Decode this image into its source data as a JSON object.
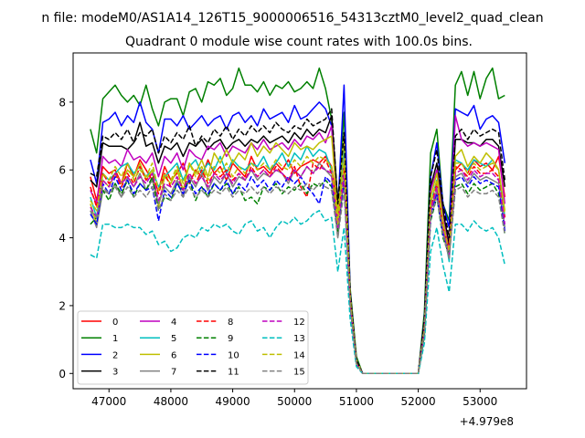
{
  "figure": {
    "suptitle": "n file: modeM0/AS1A14_126T15_9000006516_54313cztM0_level2_quad_clean"
  },
  "chart_data": {
    "type": "line",
    "title": "Quadrant 0 module wise count rates with 100.0s bins.",
    "xlabel": "",
    "ylabel": "",
    "x_offset_label": "+4.979e8",
    "x_offset": 497900000,
    "xlim": [
      46420,
      53750
    ],
    "ylim": [
      -0.45,
      9.45
    ],
    "xticks": [
      47000,
      48000,
      49000,
      50000,
      51000,
      52000,
      53000
    ],
    "xtick_labels": [
      "47000",
      "48000",
      "49000",
      "50000",
      "51000",
      "52000",
      "53000"
    ],
    "yticks": [
      0,
      2,
      4,
      6,
      8
    ],
    "ytick_labels": [
      "0",
      "2",
      "4",
      "6",
      "8"
    ],
    "grid": false,
    "legend": {
      "placement": "lower-left",
      "columns": 4
    },
    "x": [
      46700,
      46800,
      46900,
      47000,
      47100,
      47200,
      47300,
      47400,
      47500,
      47600,
      47700,
      47800,
      47900,
      48000,
      48100,
      48200,
      48300,
      48400,
      48500,
      48600,
      48700,
      48800,
      48900,
      49000,
      49100,
      49200,
      49300,
      49400,
      49500,
      49600,
      49700,
      49800,
      49900,
      50000,
      50100,
      50200,
      50300,
      50400,
      50500,
      50600,
      50700,
      50800,
      50900,
      51000,
      51100,
      51200,
      51300,
      51400,
      51500,
      51600,
      51700,
      51800,
      51900,
      52000,
      52100,
      52200,
      52300,
      52400,
      52500,
      52600,
      52700,
      52800,
      52900,
      53000,
      53100,
      53200,
      53300,
      53400
    ],
    "series": [
      {
        "name": "0",
        "color": "#ff0000",
        "dash": false,
        "values": [
          5.8,
          5.1,
          6.1,
          5.9,
          6.0,
          5.6,
          6.2,
          5.8,
          6.3,
          6.0,
          5.7,
          5.4,
          6.1,
          5.7,
          5.9,
          6.2,
          5.6,
          6.0,
          5.8,
          6.3,
          5.9,
          6.1,
          5.7,
          6.2,
          6.0,
          5.8,
          6.4,
          6.0,
          6.1,
          5.9,
          6.2,
          6.0,
          6.3,
          5.9,
          6.1,
          6.2,
          6.3,
          6.2,
          6.4,
          6.1,
          4.8,
          6.2,
          2.2,
          0.3,
          0,
          0,
          0,
          0,
          0,
          0,
          0,
          0,
          0,
          0,
          1.3,
          4.8,
          5.3,
          4.2,
          3.8,
          6.0,
          6.2,
          5.9,
          6.3,
          6.1,
          6.2,
          6.0,
          6.4,
          5.2
        ]
      },
      {
        "name": "1",
        "color": "#008000",
        "dash": false,
        "values": [
          7.2,
          6.5,
          8.1,
          8.3,
          8.5,
          8.2,
          8.0,
          8.2,
          7.9,
          8.5,
          7.8,
          7.3,
          8.0,
          8.1,
          8.1,
          7.6,
          8.3,
          8.4,
          8.0,
          8.6,
          8.5,
          8.7,
          8.2,
          8.4,
          9.0,
          8.5,
          8.5,
          8.3,
          8.6,
          8.2,
          8.5,
          8.4,
          8.6,
          8.3,
          8.4,
          8.6,
          8.4,
          9.0,
          8.4,
          7.5,
          5.0,
          7.7,
          2.5,
          0.5,
          0,
          0,
          0,
          0,
          0,
          0,
          0,
          0,
          0,
          0,
          1.8,
          6.5,
          7.2,
          5.0,
          4.5,
          8.5,
          8.9,
          8.2,
          8.9,
          8.1,
          8.7,
          9.0,
          8.1,
          8.2
        ]
      },
      {
        "name": "2",
        "color": "#0000ff",
        "dash": false,
        "values": [
          6.3,
          5.6,
          7.4,
          7.5,
          7.7,
          7.3,
          7.6,
          7.4,
          8.0,
          7.4,
          7.2,
          6.5,
          7.5,
          7.5,
          7.3,
          7.6,
          7.2,
          7.4,
          7.6,
          7.3,
          7.5,
          7.6,
          7.2,
          7.6,
          7.7,
          7.4,
          7.6,
          7.3,
          7.8,
          7.5,
          7.6,
          7.7,
          7.4,
          7.9,
          7.5,
          7.6,
          7.8,
          8.0,
          7.8,
          7.3,
          4.8,
          8.5,
          2.4,
          0.4,
          0,
          0,
          0,
          0,
          0,
          0,
          0,
          0,
          0,
          0,
          1.6,
          5.8,
          6.8,
          5.0,
          4.3,
          7.8,
          7.7,
          7.6,
          7.9,
          7.2,
          7.5,
          7.6,
          7.4,
          6.2
        ]
      },
      {
        "name": "3",
        "color": "#000000",
        "dash": false,
        "values": [
          5.7,
          5.5,
          6.8,
          6.7,
          6.7,
          6.7,
          6.6,
          6.8,
          7.4,
          6.7,
          6.8,
          6.2,
          6.7,
          6.6,
          6.8,
          6.4,
          6.8,
          6.7,
          6.9,
          6.6,
          6.8,
          6.9,
          6.6,
          6.8,
          6.9,
          6.7,
          6.9,
          6.8,
          7.0,
          6.8,
          6.9,
          7.0,
          6.8,
          7.1,
          6.9,
          7.2,
          7.0,
          7.2,
          7.1,
          7.6,
          5.0,
          6.3,
          2.3,
          0.4,
          0,
          0,
          0,
          0,
          0,
          0,
          0,
          0,
          0,
          0,
          1.5,
          5.5,
          6.2,
          4.8,
          3.8,
          6.9,
          6.9,
          6.8,
          6.8,
          6.7,
          6.9,
          6.9,
          6.7,
          5.5
        ]
      },
      {
        "name": "4",
        "color": "#bf00bf",
        "dash": false,
        "values": [
          5.4,
          5.0,
          6.4,
          6.2,
          6.3,
          6.1,
          6.6,
          6.3,
          6.4,
          6.2,
          6.5,
          5.8,
          6.4,
          6.2,
          6.5,
          6.0,
          6.6,
          6.4,
          6.3,
          6.7,
          6.6,
          6.8,
          6.4,
          6.7,
          6.6,
          6.5,
          6.8,
          6.6,
          6.9,
          6.6,
          6.7,
          6.8,
          6.6,
          6.9,
          6.7,
          7.0,
          6.9,
          7.1,
          6.8,
          7.3,
          4.5,
          6.5,
          2.2,
          0.4,
          0,
          0,
          0,
          0,
          0,
          0,
          0,
          0,
          0,
          0,
          1.4,
          5.4,
          6.0,
          4.6,
          3.6,
          7.6,
          6.9,
          6.7,
          6.8,
          6.7,
          6.8,
          6.7,
          6.6,
          5.0
        ]
      },
      {
        "name": "5",
        "color": "#00bfbf",
        "dash": false,
        "values": [
          5.2,
          4.6,
          5.9,
          5.7,
          5.9,
          6.1,
          6.2,
          5.9,
          6.1,
          5.8,
          6.0,
          5.5,
          5.8,
          6.0,
          6.2,
          5.7,
          6.1,
          6.3,
          5.9,
          6.2,
          6.0,
          6.4,
          5.9,
          6.3,
          6.1,
          6.0,
          6.2,
          6.1,
          6.4,
          6.0,
          6.2,
          6.5,
          6.1,
          6.5,
          6.3,
          6.7,
          6.4,
          6.6,
          6.5,
          6.0,
          4.1,
          6.8,
          2.1,
          0.3,
          0,
          0,
          0,
          0,
          0,
          0,
          0,
          0,
          0,
          0,
          1.3,
          5.0,
          5.7,
          4.4,
          3.3,
          6.3,
          6.2,
          6.0,
          6.3,
          6.2,
          6.1,
          6.3,
          6.0,
          4.6
        ]
      },
      {
        "name": "6",
        "color": "#bfbf00",
        "dash": false,
        "values": [
          5.0,
          4.4,
          5.7,
          5.5,
          5.9,
          5.6,
          6.0,
          5.8,
          6.2,
          5.7,
          6.0,
          4.9,
          5.8,
          5.6,
          6.0,
          5.4,
          6.2,
          5.9,
          6.3,
          5.8,
          6.5,
          6.2,
          6.6,
          6.2,
          6.5,
          6.3,
          6.8,
          6.4,
          6.7,
          6.5,
          6.8,
          6.6,
          6.4,
          6.8,
          6.6,
          6.7,
          6.6,
          6.8,
          6.9,
          7.0,
          4.7,
          7.0,
          2.3,
          0.4,
          0,
          0,
          0,
          0,
          0,
          0,
          0,
          0,
          0,
          0,
          1.4,
          5.2,
          5.9,
          4.5,
          3.5,
          6.4,
          6.6,
          6.1,
          6.4,
          6.2,
          6.5,
          6.3,
          6.0,
          4.8
        ]
      },
      {
        "name": "7",
        "color": "#808080",
        "dash": false,
        "values": [
          4.8,
          4.3,
          5.4,
          5.3,
          5.6,
          5.2,
          5.8,
          5.5,
          5.9,
          5.4,
          5.7,
          5.0,
          5.5,
          5.3,
          5.7,
          5.2,
          5.8,
          5.5,
          5.9,
          5.4,
          5.8,
          5.6,
          5.9,
          5.5,
          5.8,
          5.7,
          6.0,
          5.7,
          5.9,
          5.8,
          6.0,
          5.9,
          5.6,
          6.0,
          5.8,
          6.1,
          5.9,
          6.2,
          6.0,
          5.8,
          4.0,
          5.8,
          2.0,
          0.3,
          0,
          0,
          0,
          0,
          0,
          0,
          0,
          0,
          0,
          0,
          1.2,
          4.8,
          5.4,
          4.2,
          3.4,
          5.8,
          5.9,
          5.6,
          5.9,
          5.7,
          5.8,
          5.7,
          5.6,
          4.3
        ]
      },
      {
        "name": "8",
        "color": "#ff0000",
        "dash": true,
        "values": [
          5.5,
          4.9,
          5.9,
          5.6,
          5.9,
          5.5,
          5.9,
          5.6,
          6.1,
          5.7,
          5.9,
          5.3,
          5.9,
          5.5,
          5.8,
          5.4,
          5.9,
          5.6,
          6.0,
          5.6,
          5.9,
          5.8,
          6.0,
          5.7,
          5.9,
          5.7,
          6.1,
          5.8,
          6.0,
          5.8,
          6.1,
          5.9,
          5.7,
          6.1,
          5.5,
          5.2,
          6.2,
          6.0,
          6.3,
          5.9,
          4.4,
          6.1,
          2.1,
          0.3,
          0,
          0,
          0,
          0,
          0,
          0,
          0,
          0,
          0,
          0,
          1.3,
          4.9,
          5.6,
          4.3,
          3.7,
          6.1,
          6.0,
          5.8,
          6.1,
          5.9,
          5.9,
          6.0,
          5.8,
          4.6
        ]
      },
      {
        "name": "9",
        "color": "#008000",
        "dash": true,
        "values": [
          4.4,
          4.6,
          5.4,
          5.1,
          5.6,
          5.3,
          5.7,
          5.2,
          5.6,
          5.4,
          5.8,
          4.8,
          5.2,
          5.1,
          5.6,
          5.4,
          5.7,
          5.1,
          5.5,
          5.2,
          5.6,
          5.4,
          5.6,
          5.3,
          5.5,
          5.1,
          5.2,
          5.0,
          5.5,
          5.4,
          5.6,
          5.3,
          5.5,
          5.4,
          5.6,
          5.3,
          5.6,
          5.5,
          5.7,
          5.5,
          4.2,
          5.6,
          2.0,
          0.3,
          0,
          0,
          0,
          0,
          0,
          0,
          0,
          0,
          0,
          0,
          1.1,
          4.5,
          5.2,
          4.0,
          3.5,
          5.5,
          5.6,
          5.3,
          5.6,
          5.4,
          5.5,
          5.6,
          5.3,
          4.1
        ]
      },
      {
        "name": "10",
        "color": "#0000ff",
        "dash": true,
        "values": [
          4.7,
          4.4,
          5.6,
          5.3,
          5.8,
          5.4,
          5.7,
          5.3,
          5.6,
          5.4,
          5.5,
          4.5,
          5.4,
          5.2,
          5.6,
          5.3,
          5.7,
          5.3,
          5.5,
          5.3,
          5.6,
          5.4,
          5.7,
          5.3,
          5.6,
          5.4,
          5.8,
          5.5,
          5.7,
          5.4,
          5.7,
          5.5,
          5.8,
          5.6,
          5.8,
          5.5,
          5.3,
          5.0,
          5.8,
          5.6,
          4.3,
          5.7,
          2.0,
          0.3,
          0,
          0,
          0,
          0,
          0,
          0,
          0,
          0,
          0,
          0,
          1.2,
          4.6,
          5.3,
          4.1,
          3.6,
          5.7,
          5.8,
          5.5,
          5.8,
          5.6,
          5.7,
          5.6,
          5.5,
          4.2
        ]
      },
      {
        "name": "11",
        "color": "#000000",
        "dash": true,
        "values": [
          5.9,
          5.8,
          7.0,
          6.9,
          7.1,
          6.9,
          7.2,
          6.8,
          7.1,
          7.0,
          7.2,
          6.5,
          7.0,
          6.8,
          7.1,
          6.9,
          7.3,
          6.7,
          7.0,
          6.8,
          7.2,
          7.0,
          7.3,
          6.9,
          7.2,
          7.0,
          7.3,
          7.1,
          7.3,
          7.1,
          7.4,
          7.2,
          7.1,
          7.3,
          7.2,
          7.5,
          7.3,
          7.4,
          7.5,
          7.8,
          5.0,
          7.1,
          2.4,
          0.4,
          0,
          0,
          0,
          0,
          0,
          0,
          0,
          0,
          0,
          0,
          1.6,
          5.8,
          6.6,
          5.0,
          4.0,
          7.0,
          7.2,
          6.9,
          7.2,
          7.0,
          7.1,
          7.2,
          7.1,
          5.7
        ]
      },
      {
        "name": "12",
        "color": "#bf00bf",
        "dash": true,
        "values": [
          4.9,
          4.6,
          5.7,
          5.5,
          5.9,
          5.6,
          5.8,
          5.5,
          5.8,
          5.6,
          5.9,
          5.1,
          5.6,
          5.5,
          5.8,
          5.4,
          5.9,
          5.6,
          5.8,
          5.5,
          5.9,
          5.7,
          5.9,
          5.6,
          5.9,
          5.7,
          6.0,
          5.8,
          6.0,
          5.8,
          6.0,
          5.9,
          5.7,
          6.0,
          5.8,
          6.1,
          5.9,
          6.1,
          6.0,
          5.9,
          4.3,
          5.9,
          2.1,
          0.3,
          0,
          0,
          0,
          0,
          0,
          0,
          0,
          0,
          0,
          0,
          1.3,
          4.8,
          5.5,
          4.3,
          3.5,
          5.9,
          6.0,
          5.7,
          6.0,
          5.8,
          5.9,
          5.9,
          5.7,
          4.4
        ]
      },
      {
        "name": "13",
        "color": "#00bfbf",
        "dash": true,
        "values": [
          3.5,
          3.4,
          4.4,
          4.4,
          4.3,
          4.3,
          4.4,
          4.3,
          4.3,
          4.1,
          4.2,
          3.8,
          3.9,
          3.6,
          3.7,
          4.0,
          4.1,
          4.0,
          4.3,
          4.2,
          4.4,
          4.3,
          4.4,
          4.2,
          4.1,
          4.4,
          4.5,
          4.2,
          4.3,
          4.0,
          4.3,
          4.5,
          4.4,
          4.6,
          4.4,
          4.5,
          4.7,
          4.8,
          4.5,
          4.6,
          3.0,
          4.3,
          1.6,
          0.2,
          0,
          0,
          0,
          0,
          0,
          0,
          0,
          0,
          0,
          0,
          0.9,
          3.6,
          4.3,
          3.2,
          2.4,
          4.4,
          4.4,
          4.2,
          4.5,
          4.3,
          4.2,
          4.3,
          4.0,
          3.2
        ]
      },
      {
        "name": "14",
        "color": "#bfbf00",
        "dash": true,
        "values": [
          5.1,
          4.8,
          5.9,
          5.7,
          6.1,
          5.8,
          6.2,
          5.7,
          6.0,
          5.8,
          6.2,
          5.4,
          5.9,
          5.7,
          6.1,
          5.6,
          6.2,
          5.8,
          6.1,
          5.7,
          6.1,
          5.9,
          6.2,
          5.8,
          6.1,
          5.9,
          6.2,
          6.0,
          6.2,
          6.0,
          6.3,
          6.1,
          6.0,
          6.3,
          6.1,
          6.4,
          6.2,
          6.4,
          6.3,
          6.1,
          4.4,
          6.3,
          2.2,
          0.3,
          0,
          0,
          0,
          0,
          0,
          0,
          0,
          0,
          0,
          0,
          1.3,
          5.0,
          5.7,
          4.4,
          3.6,
          6.2,
          6.2,
          5.9,
          6.2,
          6.0,
          6.1,
          6.2,
          6.0,
          4.7
        ]
      },
      {
        "name": "15",
        "color": "#808080",
        "dash": true,
        "values": [
          4.8,
          4.6,
          5.5,
          5.3,
          5.5,
          5.2,
          5.5,
          5.2,
          5.4,
          5.2,
          5.5,
          4.8,
          5.3,
          5.1,
          5.4,
          5.2,
          5.5,
          5.2,
          5.4,
          5.2,
          5.4,
          5.3,
          5.5,
          5.2,
          5.4,
          5.3,
          5.5,
          5.3,
          5.5,
          5.3,
          5.5,
          5.4,
          5.3,
          5.5,
          5.4,
          5.6,
          5.4,
          5.6,
          5.5,
          5.4,
          4.0,
          5.4,
          2.0,
          0.3,
          0,
          0,
          0,
          0,
          0,
          0,
          0,
          0,
          0,
          0,
          1.2,
          4.6,
          5.2,
          4.1,
          3.4,
          5.4,
          5.5,
          5.2,
          5.4,
          5.3,
          5.3,
          5.4,
          5.2,
          4.1
        ]
      }
    ]
  }
}
